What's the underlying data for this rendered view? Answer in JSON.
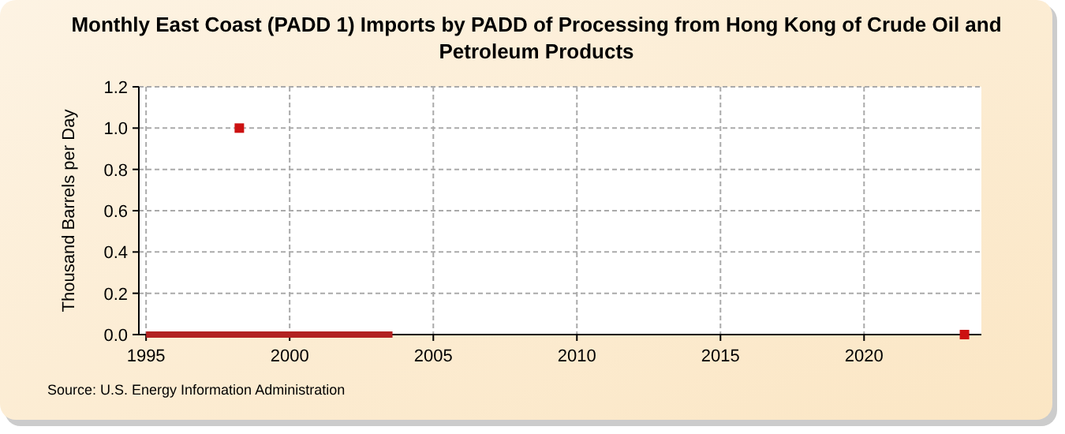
{
  "chart_data": {
    "type": "line",
    "title": "Monthly East Coast (PADD 1) Imports by PADD of Processing from Hong Kong of Crude Oil and Petroleum Products",
    "ylabel": "Thousand Barrels per Day",
    "annotations": [
      "Source: U.S. Energy Information Administration"
    ],
    "series": [
      {
        "color": "#b22222",
        "x": [
          "1995-01",
          "2003-08"
        ],
        "values": [
          0,
          0
        ]
      },
      {
        "type": "scatter",
        "marker": "square",
        "color": "#cc1111",
        "x": [
          "1998-04",
          "2023-07"
        ],
        "values": [
          1.0,
          0
        ]
      }
    ],
    "xlim": [
      "1994-10",
      "2024-02"
    ],
    "xticks": [
      "1995",
      "2000",
      "2005",
      "2010",
      "2015",
      "2020"
    ],
    "ylim": [
      0,
      1.2
    ],
    "yticks": [
      {
        "value": 0,
        "label": "0.0"
      },
      {
        "value": 0.2,
        "label": "0.2"
      },
      {
        "value": 0.4,
        "label": "0.4"
      },
      {
        "value": 0.6,
        "label": "0.6"
      },
      {
        "value": 0.8,
        "label": "0.8"
      },
      {
        "value": 1.0,
        "label": "1.0"
      },
      {
        "value": 1.2,
        "label": "1.2"
      }
    ],
    "grid": true,
    "line_style": "solid"
  }
}
